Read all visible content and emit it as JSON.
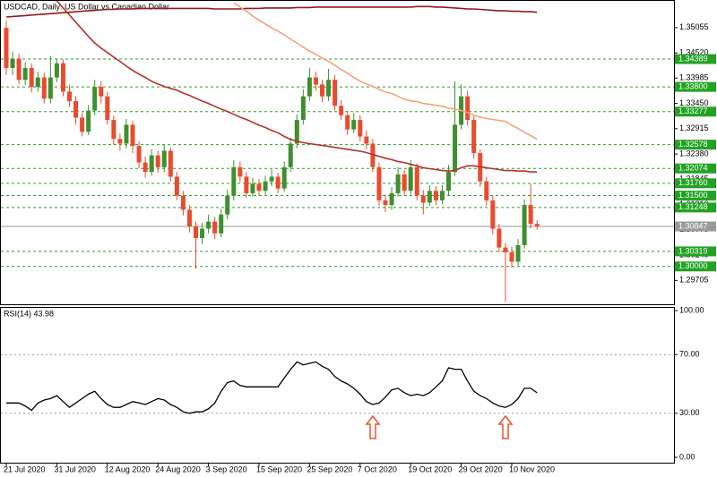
{
  "chart_data": [
    {
      "type": "candlestick",
      "title": "USDCAD, Daily:  US Dollar vs Canadian Dollar",
      "categories": [
        "21 Jul 2020",
        null,
        null,
        null,
        null,
        null,
        null,
        null,
        "31 Jul 2020",
        null,
        null,
        null,
        null,
        null,
        null,
        null,
        "12 Aug 2020",
        null,
        null,
        null,
        null,
        null,
        null,
        null,
        "24 Aug 2020",
        null,
        null,
        null,
        null,
        null,
        null,
        null,
        "3 Sep 2020",
        null,
        null,
        null,
        null,
        null,
        null,
        null,
        "15 Sep 2020",
        null,
        null,
        null,
        null,
        null,
        null,
        null,
        "25 Sep 2020",
        null,
        null,
        null,
        null,
        null,
        null,
        null,
        "7 Oct 2020",
        null,
        null,
        null,
        null,
        null,
        null,
        null,
        "19 Oct 2020",
        null,
        null,
        null,
        null,
        null,
        null,
        null,
        "29 Oct 2020",
        null,
        null,
        null,
        null,
        null,
        null,
        null,
        "10 Nov 2020",
        null,
        null,
        null,
        null
      ],
      "open": [
        1.3505,
        1.342,
        1.344,
        1.3395,
        1.342,
        1.338,
        1.34,
        1.3355,
        1.34,
        1.343,
        1.337,
        1.335,
        1.3315,
        1.3285,
        1.333,
        1.338,
        1.336,
        1.331,
        1.327,
        1.326,
        1.33,
        1.3255,
        1.322,
        1.32,
        1.3235,
        1.321,
        1.3245,
        1.319,
        1.315,
        1.312,
        1.3085,
        1.306,
        1.308,
        1.3095,
        1.307,
        1.311,
        1.315,
        1.321,
        1.319,
        1.3155,
        1.3175,
        1.316,
        1.318,
        1.319,
        1.3165,
        1.321,
        1.326,
        1.331,
        1.336,
        1.34,
        1.3385,
        1.336,
        1.3395,
        1.334,
        1.332,
        1.329,
        1.331,
        1.3275,
        1.326,
        1.321,
        1.314,
        1.313,
        1.3155,
        1.3195,
        1.316,
        1.321,
        1.315,
        1.3135,
        1.316,
        1.314,
        1.316,
        1.32,
        1.33,
        1.336,
        1.331,
        1.324,
        1.318,
        1.314,
        1.308,
        1.304,
        1.303,
        1.301,
        1.3045,
        1.313,
        1.309
      ],
      "high": [
        1.352,
        1.3455,
        1.345,
        1.3432,
        1.343,
        1.3412,
        1.341,
        1.3445,
        1.344,
        1.3438,
        1.3385,
        1.336,
        1.3325,
        1.3342,
        1.3395,
        1.3392,
        1.337,
        1.332,
        1.3282,
        1.3312,
        1.3308,
        1.3265,
        1.3232,
        1.3248,
        1.3245,
        1.3258,
        1.3252,
        1.32,
        1.316,
        1.313,
        1.3095,
        1.3092,
        1.311,
        1.3105,
        1.3122,
        1.3162,
        1.3225,
        1.3222,
        1.32,
        1.3188,
        1.3185,
        1.3192,
        1.3205,
        1.3198,
        1.3222,
        1.3272,
        1.3322,
        1.3375,
        1.342,
        1.3412,
        1.3395,
        1.3418,
        1.3405,
        1.3352,
        1.333,
        1.3325,
        1.332,
        1.3288,
        1.327,
        1.322,
        1.3152,
        1.3168,
        1.321,
        1.3205,
        1.3225,
        1.3218,
        1.3162,
        1.3172,
        1.317,
        1.3172,
        1.3215,
        1.3392,
        1.3385,
        1.3372,
        1.332,
        1.3248,
        1.319,
        1.315,
        1.309,
        1.305,
        1.3042,
        1.3058,
        1.3142,
        1.3175,
        1.3098
      ],
      "low": [
        1.3405,
        1.3405,
        1.3385,
        1.3384,
        1.3368,
        1.337,
        1.3345,
        1.3345,
        1.339,
        1.336,
        1.3338,
        1.33,
        1.3275,
        1.3278,
        1.332,
        1.3345,
        1.33,
        1.3258,
        1.3245,
        1.325,
        1.324,
        1.3208,
        1.3188,
        1.3192,
        1.3198,
        1.32,
        1.318,
        1.314,
        1.3108,
        1.3072,
        1.2995,
        1.3048,
        1.307,
        1.3058,
        1.3062,
        1.31,
        1.314,
        1.3178,
        1.3145,
        1.3148,
        1.315,
        1.3152,
        1.317,
        1.3155,
        1.3158,
        1.32,
        1.325,
        1.33,
        1.335,
        1.3372,
        1.3348,
        1.335,
        1.333,
        1.331,
        1.3278,
        1.3282,
        1.3265,
        1.3248,
        1.32,
        1.3128,
        1.3115,
        1.312,
        1.3148,
        1.315,
        1.3152,
        1.314,
        1.311,
        1.3128,
        1.313,
        1.3132,
        1.315,
        1.3192,
        1.329,
        1.3298,
        1.3228,
        1.3168,
        1.3128,
        1.3068,
        1.303,
        1.2925,
        1.2998,
        1.3002,
        1.3038,
        1.308,
        1.3078
      ],
      "close": [
        1.342,
        1.344,
        1.3395,
        1.342,
        1.338,
        1.34,
        1.3355,
        1.34,
        1.343,
        1.337,
        1.335,
        1.3315,
        1.3285,
        1.333,
        1.338,
        1.336,
        1.331,
        1.327,
        1.326,
        1.33,
        1.3255,
        1.322,
        1.32,
        1.3235,
        1.321,
        1.3245,
        1.319,
        1.315,
        1.312,
        1.3085,
        1.306,
        1.308,
        1.3095,
        1.307,
        1.311,
        1.315,
        1.321,
        1.319,
        1.3155,
        1.3175,
        1.316,
        1.318,
        1.319,
        1.3165,
        1.321,
        1.326,
        1.331,
        1.336,
        1.34,
        1.3385,
        1.336,
        1.3395,
        1.334,
        1.332,
        1.329,
        1.331,
        1.3275,
        1.326,
        1.321,
        1.314,
        1.313,
        1.3155,
        1.3195,
        1.316,
        1.321,
        1.315,
        1.3135,
        1.316,
        1.314,
        1.316,
        1.32,
        1.33,
        1.336,
        1.331,
        1.324,
        1.318,
        1.314,
        1.308,
        1.304,
        1.303,
        1.301,
        1.3045,
        1.313,
        1.309,
        1.3085
      ],
      "up_color": "#3f8f2f",
      "down_color": "#ea4b2e",
      "series": [
        {
          "color": "#8b1c1c",
          "values": [
            1.3528,
            1.3529,
            1.353,
            1.3531,
            1.3532,
            1.3533,
            1.3534,
            1.3535,
            1.3536,
            1.3537,
            1.3538,
            1.3539,
            1.354,
            1.3541,
            1.3542,
            1.3543,
            1.3544,
            1.3544,
            1.3545,
            1.3545,
            1.3545,
            1.3546,
            1.3546,
            1.3546,
            1.3546,
            1.3546,
            1.3546,
            1.3546,
            1.3546,
            1.3546,
            1.3546,
            1.3546,
            1.3546,
            1.3545,
            1.3545,
            1.3545,
            1.3545,
            1.3545,
            1.3546,
            1.3546,
            1.3546,
            1.3547,
            1.3547,
            1.3547,
            1.3547,
            1.3547,
            1.3548,
            1.3548,
            1.3548,
            1.3549,
            1.3549,
            1.3549,
            1.3549,
            1.3549,
            1.3549,
            1.3549,
            1.3549,
            1.3549,
            1.3549,
            1.3549,
            1.3549,
            1.3549,
            1.3549,
            1.3549,
            1.3549,
            1.355,
            1.355,
            1.355,
            1.3549,
            1.3549,
            1.3548,
            1.3547,
            1.3546,
            1.3545,
            1.3545,
            1.3544,
            1.3543,
            1.3542,
            1.3541,
            1.3541,
            1.354,
            1.354,
            1.3539,
            1.3539,
            1.3538
          ]
        },
        {
          "color": "#b3312c",
          "values": [
            null,
            null,
            null,
            null,
            null,
            null,
            null,
            null,
            1.3562,
            1.3547,
            1.3532,
            1.3517,
            1.3502,
            1.3487,
            1.3473,
            1.3462,
            1.3453,
            1.3443,
            1.3434,
            1.3424,
            1.3415,
            1.3407,
            1.34,
            1.3392,
            1.3386,
            1.3381,
            1.3377,
            1.3373,
            1.3367,
            1.3362,
            1.3356,
            1.335,
            1.3345,
            1.3339,
            1.3333,
            1.3328,
            1.3322,
            1.3316,
            1.3311,
            1.3305,
            1.3299,
            1.3294,
            1.3288,
            1.3283,
            1.3275,
            1.3269,
            1.3265,
            1.3262,
            1.326,
            1.3258,
            1.3256,
            1.3254,
            1.3252,
            1.325,
            1.3248,
            1.3246,
            1.3244,
            1.3241,
            1.3237,
            1.3233,
            1.3229,
            1.3226,
            1.3222,
            1.322,
            1.3216,
            1.3213,
            1.3209,
            1.3207,
            1.3205,
            1.3203,
            1.3202,
            1.3203,
            1.3209,
            1.3213,
            1.3213,
            1.3211,
            1.3209,
            1.3207,
            1.3205,
            1.3203,
            1.3203,
            1.3202,
            1.3202,
            1.32,
            1.32
          ]
        },
        {
          "color": "#f4a277",
          "values": [
            null,
            null,
            null,
            null,
            null,
            null,
            null,
            null,
            null,
            null,
            null,
            null,
            null,
            null,
            null,
            null,
            null,
            null,
            null,
            null,
            null,
            null,
            null,
            null,
            null,
            null,
            null,
            null,
            null,
            null,
            null,
            null,
            null,
            null,
            null,
            null,
            1.3558,
            1.3549,
            1.354,
            1.353,
            1.3521,
            1.3513,
            1.3505,
            1.3498,
            1.349,
            1.3481,
            1.3473,
            1.3464,
            1.3456,
            1.3449,
            1.3441,
            1.3434,
            1.3426,
            1.3417,
            1.3409,
            1.34,
            1.3392,
            1.3386,
            1.3381,
            1.3375,
            1.3369,
            1.3366,
            1.336,
            1.3354,
            1.335,
            1.3349,
            1.3345,
            1.3343,
            1.3341,
            1.3339,
            1.3335,
            1.3333,
            1.333,
            1.3326,
            1.332,
            1.3316,
            1.3313,
            1.3311,
            1.3309,
            1.3307,
            1.3299,
            1.3292,
            1.3284,
            1.3277,
            1.3269
          ]
        }
      ],
      "ylim": [
        1.292,
        1.3562
      ],
      "yticks": [
        1.35055,
        {
          "value": 1.3452,
          "label": "1.34520"
        },
        1.33985,
        {
          "value": 1.3345,
          "label": "1.33450"
        },
        1.32915,
        {
          "value": 1.3238,
          "label": "1.32380"
        },
        1.31845,
        {
          "value": 1.3131,
          "label": "1.31310"
        },
        1.30775,
        {
          "value": 1.3024,
          "label": "1.30240"
        },
        1.29705
      ],
      "levels": [
        1.34389,
        {
          "value": 1.338,
          "label": "1.33800"
        },
        1.33277,
        1.32578,
        1.32074,
        {
          "value": 1.3176,
          "label": "1.31760"
        },
        {
          "value": 1.315,
          "label": "1.31500"
        },
        1.31248,
        1.30319,
        {
          "value": 1.3,
          "label": "1.30000"
        }
      ],
      "level_color": "#22a322",
      "current_price": 1.30847
    },
    {
      "type": "line",
      "title": "RSI(14) 43.98",
      "series": [
        {
          "color": "#000000",
          "values": [
            37,
            37,
            37,
            35,
            32,
            37,
            39,
            40,
            42,
            38,
            34,
            37,
            40,
            43,
            45,
            40,
            36,
            34,
            34,
            36,
            38,
            37,
            36,
            38,
            40,
            39,
            36,
            34,
            31,
            30,
            31,
            31,
            33,
            37,
            45,
            51,
            52,
            49,
            48,
            48,
            48,
            48,
            48,
            48,
            54,
            60,
            65,
            63,
            64,
            65,
            62,
            60,
            55,
            52,
            50,
            47,
            43,
            38,
            36,
            37,
            41,
            46,
            47,
            44,
            42,
            43,
            42,
            44,
            48,
            52,
            61,
            60,
            60,
            52,
            45,
            42,
            40,
            37,
            35,
            34,
            36,
            40,
            47,
            47,
            43.98
          ]
        }
      ],
      "ylim": [
        0,
        100
      ],
      "yticks": [
        {
          "value": 100,
          "label": "100.00"
        },
        {
          "value": 70,
          "label": "70.00"
        },
        {
          "value": 30,
          "label": "30.00"
        },
        {
          "value": 0,
          "label": "0.00"
        }
      ],
      "grid_lines": [
        70,
        30
      ]
    }
  ]
}
